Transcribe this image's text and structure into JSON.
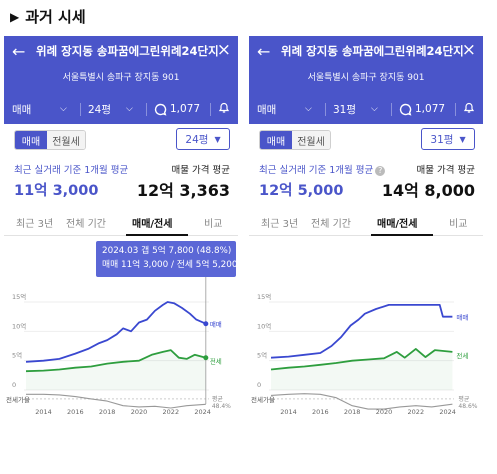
{
  "heading": {
    "marker": "▶",
    "text": "과거 시세"
  },
  "panels": [
    {
      "title": "위례 장지동 송파꿈에그린위례24단지",
      "address": "서울특별시 송파구 장지동 901",
      "trade_type": "매매",
      "size_filter": "24평",
      "comment_count": "1,077",
      "toggle_on": "매매",
      "toggle_off": "전월세",
      "size_select": "24평",
      "recent_label": "최근 실거래 기준 1개월 평균",
      "recent_value": "11억 3,000",
      "ask_label": "매물 가격 평균",
      "ask_value": "12억 3,363",
      "tabs": [
        "최근 3년",
        "전체 기간",
        "매매/전세",
        "비교"
      ],
      "active_tab": "매매/전세",
      "tooltip": {
        "line1": "2024.03  갭 5억 7,800 (48.8%)",
        "line2": "매매 11억 3,000 / 전세 5억 5,200"
      },
      "chart_data": {
        "type": "line",
        "x_ticks": [
          "2014",
          "2016",
          "2018",
          "2020",
          "2022",
          "2024"
        ],
        "y_ticks": [
          "15억",
          "10억",
          "5억",
          "0"
        ],
        "series": [
          {
            "name": "매매",
            "color": "#3a48d0",
            "x": [
              2012.9,
              2014.0,
              2015.0,
              2016.0,
              2016.8,
              2017.5,
              2018.0,
              2018.6,
              2019.0,
              2019.5,
              2020.0,
              2020.5,
              2021.0,
              2021.5,
              2021.8,
              2022.2,
              2022.7,
              2023.2,
              2023.6,
              2024.2
            ],
            "y": [
              4.8,
              5.0,
              5.3,
              6.2,
              7.0,
              8.0,
              8.5,
              9.5,
              10.5,
              10.0,
              11.5,
              12.0,
              13.5,
              14.5,
              15.0,
              14.8,
              14.0,
              13.0,
              12.0,
              11.3
            ]
          },
          {
            "name": "전세",
            "color": "#2e9e3e",
            "x": [
              2012.9,
              2014.0,
              2015.0,
              2016.0,
              2017.0,
              2018.0,
              2019.0,
              2020.0,
              2020.8,
              2021.5,
              2022.0,
              2022.5,
              2023.0,
              2023.5,
              2024.2
            ],
            "y": [
              3.2,
              3.3,
              3.5,
              3.8,
              4.0,
              4.5,
              4.8,
              5.0,
              6.0,
              6.5,
              6.8,
              5.5,
              5.3,
              6.0,
              5.5
            ]
          },
          {
            "name": "전세가율",
            "color": "#999999",
            "x": [
              2012.9,
              2014.0,
              2015.0,
              2016.0,
              2017.0,
              2018.0,
              2019.0,
              2020.0,
              2021.0,
              2022.0,
              2023.0,
              2024.2
            ],
            "y": [
              66,
              66,
              65,
              62,
              58,
              54,
              46,
              44,
              45,
              42,
              46,
              48.4
            ]
          }
        ],
        "label_main": "매매",
        "label_jeonse": "전세",
        "label_ratio": "전세가율",
        "label_avg": "평균",
        "label_avg_pct": "48.4%"
      }
    },
    {
      "title": "위례 장지동 송파꿈에그린위례24단지",
      "address": "서울특별시 송파구 장지동 901",
      "trade_type": "매매",
      "size_filter": "31평",
      "comment_count": "1,077",
      "toggle_on": "매매",
      "toggle_off": "전월세",
      "size_select": "31평",
      "recent_label": "최근 실거래 기준 1개월 평균",
      "recent_value": "12억 5,000",
      "ask_label": "매물 가격 평균",
      "ask_value": "14억 8,000",
      "tabs": [
        "최근 3년",
        "전체 기간",
        "매매/전세",
        "비교"
      ],
      "active_tab": "매매/전세",
      "chart_data": {
        "type": "line",
        "x_ticks": [
          "2014",
          "2016",
          "2018",
          "2020",
          "2022",
          "2024"
        ],
        "y_ticks": [
          "15억",
          "10억",
          "5억",
          "0"
        ],
        "series": [
          {
            "name": "매매",
            "color": "#3a48d0",
            "x": [
              2012.9,
              2014.0,
              2015.0,
              2016.0,
              2016.7,
              2017.3,
              2017.9,
              2018.4,
              2018.8,
              2019.5,
              2020.3,
              2021.0,
              2023.5,
              2023.7,
              2024.3
            ],
            "y": [
              5.5,
              5.7,
              6.0,
              6.3,
              7.5,
              9.0,
              11.0,
              12.0,
              13.0,
              13.8,
              14.5,
              14.5,
              14.5,
              12.5,
              12.5
            ]
          },
          {
            "name": "전세",
            "color": "#2e9e3e",
            "x": [
              2012.9,
              2014.0,
              2015.0,
              2016.0,
              2017.0,
              2018.0,
              2019.0,
              2020.0,
              2020.8,
              2021.3,
              2022.0,
              2022.6,
              2023.2,
              2024.3
            ],
            "y": [
              3.5,
              3.8,
              4.0,
              4.3,
              4.6,
              5.0,
              5.2,
              5.4,
              6.5,
              5.5,
              7.0,
              5.6,
              6.8,
              6.5
            ]
          },
          {
            "name": "전세가율",
            "color": "#999999",
            "x": [
              2012.9,
              2014.0,
              2015.0,
              2016.0,
              2017.0,
              2018.0,
              2019.0,
              2020.0,
              2021.0,
              2022.0,
              2023.0,
              2024.3
            ],
            "y": [
              64,
              66,
              67,
              66,
              60,
              46,
              40,
              40,
              44,
              46,
              44,
              48.6
            ]
          }
        ],
        "label_main": "매매",
        "label_jeonse": "전세",
        "label_ratio": "전세가율",
        "label_avg": "평균",
        "label_avg_pct": "48.6%"
      }
    }
  ]
}
